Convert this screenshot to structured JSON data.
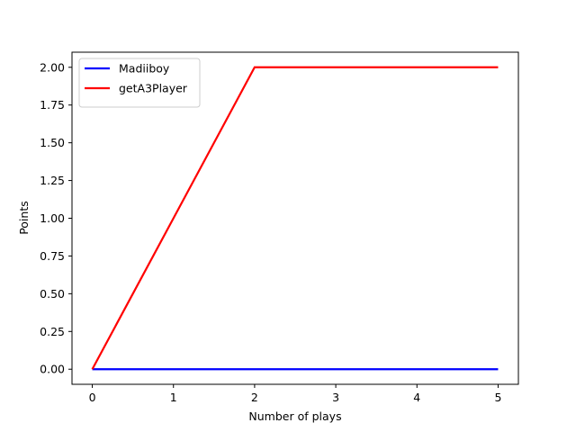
{
  "chart_data": {
    "type": "line",
    "title": "",
    "xlabel": "Number of plays",
    "ylabel": "Points",
    "xlim": [
      -0.25,
      5.25
    ],
    "ylim": [
      -0.1,
      2.1
    ],
    "xticks": [
      0,
      1,
      2,
      3,
      4,
      5
    ],
    "xtick_labels": [
      "0",
      "1",
      "2",
      "3",
      "4",
      "5"
    ],
    "yticks": [
      0,
      0.25,
      0.5,
      0.75,
      1.0,
      1.25,
      1.5,
      1.75,
      2.0
    ],
    "ytick_labels": [
      "0.00",
      "0.25",
      "0.50",
      "0.75",
      "1.00",
      "1.25",
      "1.50",
      "1.75",
      "2.00"
    ],
    "grid": false,
    "legend_position": "top-left",
    "series": [
      {
        "name": "Madiiboy",
        "color": "#0000ff",
        "x": [
          0,
          1,
          2,
          3,
          4,
          5
        ],
        "y": [
          0,
          0,
          0,
          0,
          0,
          0
        ]
      },
      {
        "name": "getA3Player",
        "color": "#ff0000",
        "x": [
          0,
          1,
          2,
          3,
          4,
          5
        ],
        "y": [
          0,
          1,
          2,
          2,
          2,
          2
        ]
      }
    ]
  }
}
